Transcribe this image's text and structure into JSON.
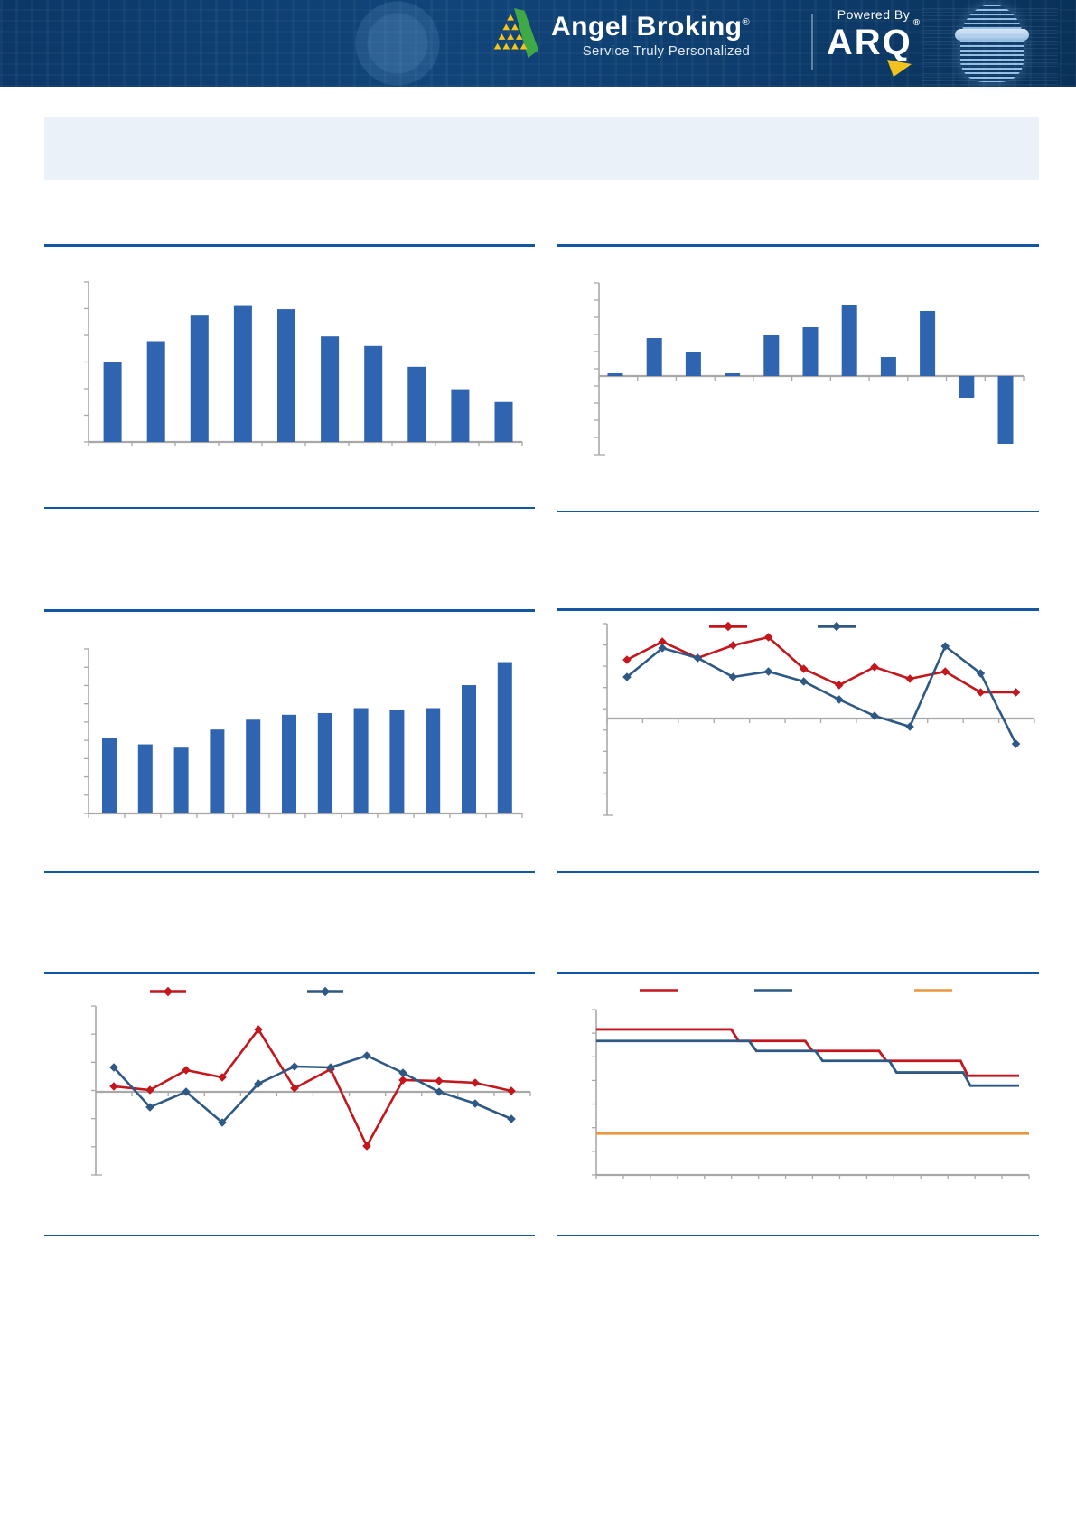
{
  "header": {
    "brand": "Angel Broking",
    "registered": "®",
    "tagline": "Service Truly Personalized",
    "powered_by": "Powered By",
    "arq": "ARQ",
    "arq_registered": "®"
  },
  "title_box": {
    "text": ""
  },
  "colors": {
    "accent_blue": "#1256A6",
    "bar_blue": "#2E64B0",
    "red": "#C3161D",
    "navy": "#2E5984",
    "orange": "#E9963F",
    "axis_gray": "#A8A8A8",
    "header_navy": "#0D3C6D",
    "logo_green": "#3FA948",
    "logo_yellow": "#F7C515",
    "title_box_fill": "#EBF1F8"
  },
  "chart_data": [
    {
      "type": "bar",
      "title": "",
      "xlabel": "",
      "ylabel": "",
      "values": [
        50,
        63,
        79,
        85,
        83,
        66,
        60,
        47,
        33,
        25
      ],
      "ylim": [
        0,
        100
      ],
      "axis_text_visible": false
    },
    {
      "type": "bar",
      "title": "",
      "xlabel": "",
      "ylabel": "",
      "values": [
        0.1,
        1.4,
        0.9,
        0.1,
        1.5,
        1.8,
        2.6,
        0.7,
        2.4,
        -0.8,
        -2.5
      ],
      "ylim": [
        -3,
        3.5
      ],
      "axis_text_visible": false
    },
    {
      "type": "bar",
      "title": "",
      "xlabel": "",
      "ylabel": "",
      "values": [
        46,
        42,
        40,
        51,
        57,
        60,
        61,
        64,
        63,
        64,
        78,
        92
      ],
      "ylim": [
        0,
        110
      ],
      "axis_text_visible": false
    },
    {
      "type": "line",
      "title": "",
      "legend_labels": [
        "",
        ""
      ],
      "series": [
        {
          "name": "",
          "color_key": "red",
          "values": [
            6.5,
            8.5,
            6.7,
            8.1,
            9.0,
            5.5,
            3.7,
            5.7,
            4.4,
            5.2,
            2.9,
            2.9
          ]
        },
        {
          "name": "",
          "color_key": "navy",
          "values": [
            4.6,
            7.8,
            6.7,
            4.6,
            5.2,
            4.1,
            2.1,
            0.3,
            -0.9,
            8.0,
            5.0,
            -2.8
          ]
        }
      ],
      "ylim": [
        -5,
        11
      ],
      "axis_text_visible": false
    },
    {
      "type": "line",
      "title": "",
      "legend_labels": [
        "",
        ""
      ],
      "series": [
        {
          "name": "",
          "color_key": "red",
          "values": [
            0.6,
            0.2,
            2.4,
            1.6,
            6.9,
            0.4,
            2.5,
            -6.0,
            1.3,
            1.2,
            1.0,
            0.1
          ]
        },
        {
          "name": "",
          "color_key": "navy",
          "values": [
            2.7,
            -1.7,
            0.0,
            -3.4,
            0.9,
            2.8,
            2.7,
            4.0,
            2.1,
            0.0,
            -1.3,
            -3.0
          ]
        }
      ],
      "ylim": [
        -9,
        9
      ],
      "axis_text_visible": false
    },
    {
      "type": "step",
      "title": "",
      "legend_labels": [
        "",
        "",
        ""
      ],
      "series": [
        {
          "name": "",
          "color_key": "red",
          "levels": [
            88,
            81,
            75,
            69,
            60
          ],
          "breaks_x": [
            5.3,
            8.2,
            11.1,
            14.3
          ]
        },
        {
          "name": "",
          "color_key": "navy",
          "levels": [
            81,
            75,
            69,
            62,
            54
          ],
          "breaks_x": [
            6.0,
            8.6,
            11.5,
            14.4
          ]
        },
        {
          "name": "",
          "color_key": "orange",
          "levels": [
            25
          ],
          "breaks_x": []
        }
      ],
      "xlim": [
        0,
        17
      ],
      "ylim": [
        0,
        110
      ],
      "axis_text_visible": false
    }
  ]
}
